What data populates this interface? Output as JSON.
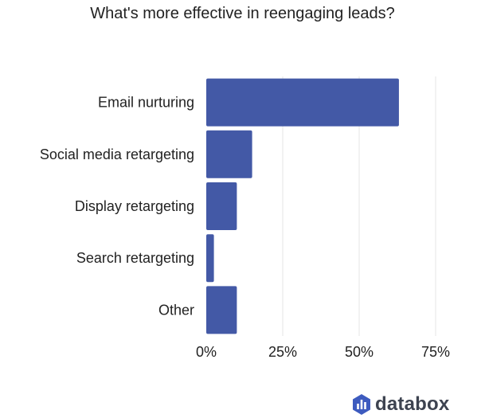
{
  "chart_data": {
    "type": "bar",
    "orientation": "horizontal",
    "title": "What's more effective in reengaging leads?",
    "categories": [
      "Email nurturing",
      "Social media retargeting",
      "Display retargeting",
      "Search retargeting",
      "Other"
    ],
    "values": [
      63,
      15,
      10,
      2.5,
      10
    ],
    "xlim": [
      0,
      75
    ],
    "xticks": [
      0,
      25,
      50,
      75
    ],
    "xtick_labels": [
      "0%",
      "25%",
      "50%",
      "75%"
    ],
    "unit": "%",
    "grid": true,
    "bar_color": "#4359a6"
  },
  "brand": {
    "name": "databox",
    "icon": "databox-logo-icon",
    "color": "#3d5bbf"
  }
}
